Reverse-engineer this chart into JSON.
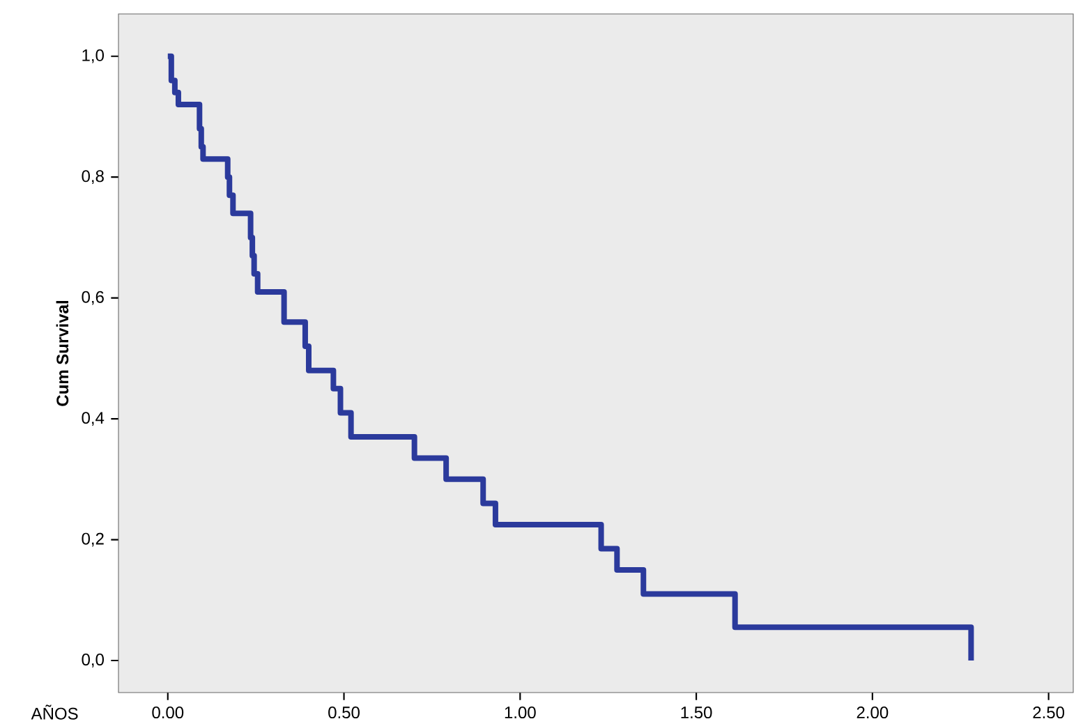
{
  "chart_data": {
    "type": "step",
    "xlabel": "AÑOS",
    "ylabel": "Cum Survival",
    "color": "#2b3a9c",
    "x": [
      0.0,
      0.01,
      0.02,
      0.03,
      0.09,
      0.095,
      0.1,
      0.17,
      0.175,
      0.185,
      0.235,
      0.24,
      0.245,
      0.255,
      0.33,
      0.39,
      0.4,
      0.47,
      0.49,
      0.52,
      0.7,
      0.79,
      0.895,
      0.93,
      1.23,
      1.275,
      1.35,
      1.61,
      2.28
    ],
    "values": [
      1.0,
      0.96,
      0.94,
      0.92,
      0.88,
      0.85,
      0.83,
      0.8,
      0.77,
      0.74,
      0.7,
      0.67,
      0.64,
      0.61,
      0.56,
      0.52,
      0.48,
      0.45,
      0.41,
      0.37,
      0.335,
      0.3,
      0.26,
      0.225,
      0.185,
      0.15,
      0.11,
      0.055,
      0.0
    ],
    "xlim": [
      -0.14,
      2.57
    ],
    "ylim": [
      -0.053,
      1.07
    ],
    "xticks": [
      {
        "value": 0,
        "label": "0.00"
      },
      {
        "value": 0.5,
        "label": "0.50"
      },
      {
        "value": 1.0,
        "label": "1.00"
      },
      {
        "value": 1.5,
        "label": "1.50"
      },
      {
        "value": 2.0,
        "label": "2.00"
      },
      {
        "value": 2.5,
        "label": "2.50"
      }
    ],
    "yticks": [
      {
        "value": 0,
        "label": "0,0"
      },
      {
        "value": 0.2,
        "label": "0,2"
      },
      {
        "value": 0.4,
        "label": "0,4"
      },
      {
        "value": 0.6,
        "label": "0,6"
      },
      {
        "value": 0.8,
        "label": "0,8"
      },
      {
        "value": 1.0,
        "label": "1,0"
      }
    ]
  }
}
